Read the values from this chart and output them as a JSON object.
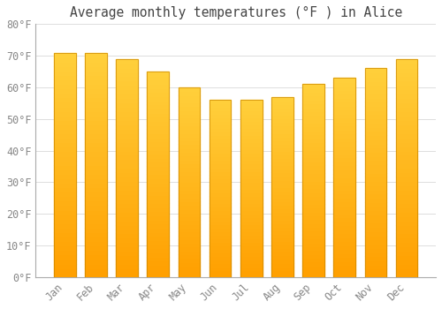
{
  "title": "Average monthly temperatures (°F ) in Alice",
  "months": [
    "Jan",
    "Feb",
    "Mar",
    "Apr",
    "May",
    "Jun",
    "Jul",
    "Aug",
    "Sep",
    "Oct",
    "Nov",
    "Dec"
  ],
  "values": [
    71,
    71,
    69,
    65,
    60,
    56,
    56,
    57,
    61,
    63,
    66,
    69
  ],
  "bar_color_top": "#FFD060",
  "bar_color_bottom": "#FFA000",
  "bar_edge_color": "#CC8800",
  "ylim": [
    0,
    80
  ],
  "ytick_step": 10,
  "background_color": "#FFFFFF",
  "plot_bg_color": "#FFFFFF",
  "grid_color": "#DDDDDD",
  "title_fontsize": 10.5,
  "tick_fontsize": 8.5,
  "tick_label_color": "#888888",
  "title_color": "#444444",
  "tick_font_family": "monospace"
}
